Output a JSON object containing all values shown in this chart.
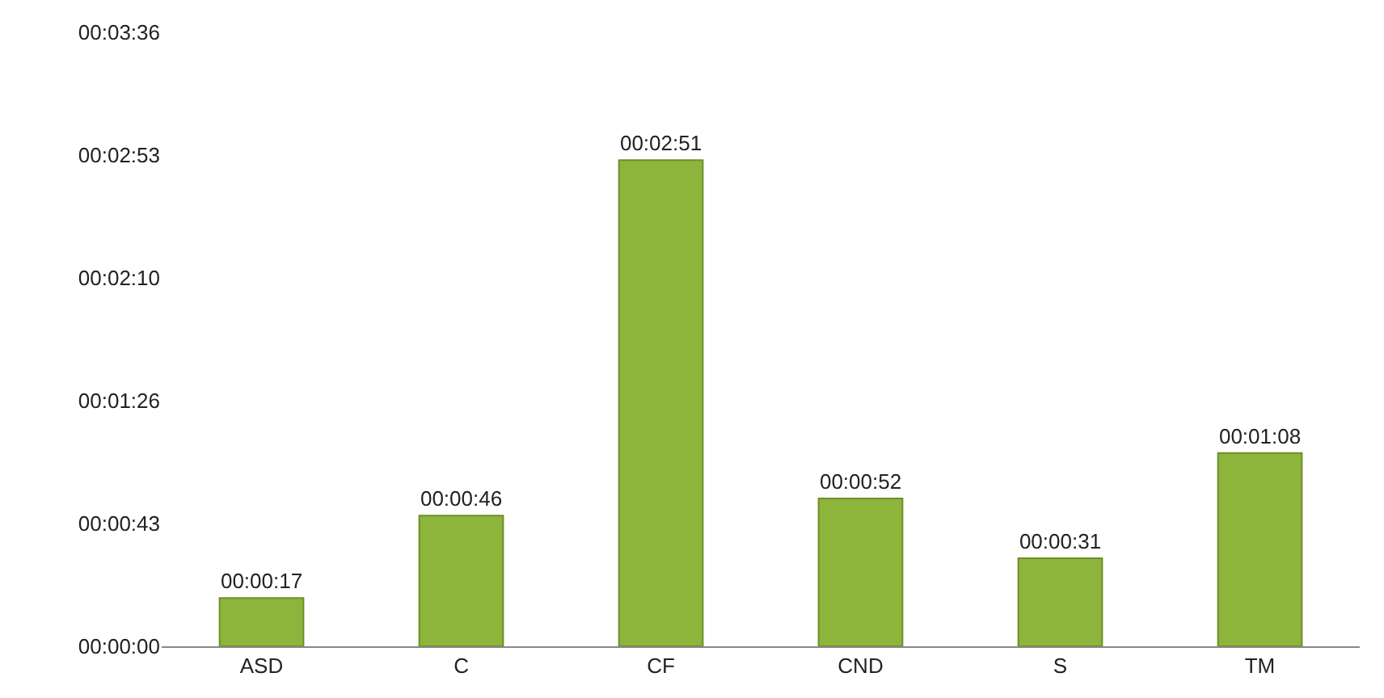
{
  "chart_data": {
    "type": "bar",
    "categories": [
      "ASD",
      "C",
      "CF",
      "CND",
      "S",
      "TM"
    ],
    "values": [
      17,
      46,
      171,
      52,
      31,
      68
    ],
    "value_labels": [
      "00:00:17",
      "00:00:46",
      "00:02:51",
      "00:00:52",
      "00:00:31",
      "00:01:08"
    ],
    "color": "#8db53c",
    "ylim": [
      0,
      216
    ],
    "yticks": [
      {
        "value": 0,
        "label": "00:00:00"
      },
      {
        "value": 43.2,
        "label": "00:00:43"
      },
      {
        "value": 86.4,
        "label": "00:01:26"
      },
      {
        "value": 129.6,
        "label": "00:02:10"
      },
      {
        "value": 172.8,
        "label": "00:02:53"
      },
      {
        "value": 216,
        "label": "00:03:36"
      }
    ],
    "grid": false
  }
}
